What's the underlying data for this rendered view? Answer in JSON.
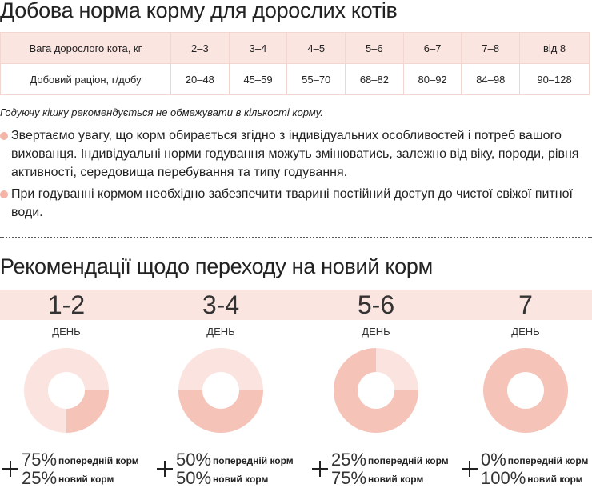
{
  "header": {
    "title": "Добова норма корму для дорослих котів"
  },
  "table": {
    "rows": [
      [
        "Вага дорослого кота, кг",
        "2–3",
        "3–4",
        "4–5",
        "5–6",
        "6–7",
        "7–8",
        "від 8"
      ],
      [
        "Добовий раціон, г/добу",
        "20–48",
        "45–59",
        "55–70",
        "68–82",
        "80–92",
        "84–98",
        "90–128"
      ]
    ]
  },
  "note": "Годуючу кішку рекомендується не обмежувати в кількості корму.",
  "bullets": [
    "Звертаємо увагу, що корм обирається згідно з індивідуальних особливостей і потреб вашого вихованця. Індивідуальні норми годування можуть змінюватись, залежно від віку, породи, рівня активності, середовища перебування та типу годування.",
    "При годуванні кормом необхідно забезпечити тварині постійний доступ до чистої свіжої питної води."
  ],
  "section": {
    "title": "Рекомендації щодо переходу на новий корм",
    "series_names": [
      "попередній корм",
      "новий корм"
    ],
    "colors": [
      "#fbe4df",
      "#f5c3b7"
    ],
    "days": [
      {
        "label": "1-2",
        "unit": "ДЕНЬ",
        "values": [
          75,
          25
        ],
        "value_labels": [
          "75%",
          "25%"
        ]
      },
      {
        "label": "3-4",
        "unit": "ДЕНЬ",
        "values": [
          50,
          50
        ],
        "value_labels": [
          "50%",
          "50%"
        ]
      },
      {
        "label": "5-6",
        "unit": "ДЕНЬ",
        "values": [
          25,
          75
        ],
        "value_labels": [
          "25%",
          "75%"
        ]
      },
      {
        "label": "7",
        "unit": "ДЕНЬ",
        "values": [
          0,
          100
        ],
        "value_labels": [
          "0%",
          "100%"
        ]
      }
    ]
  }
}
